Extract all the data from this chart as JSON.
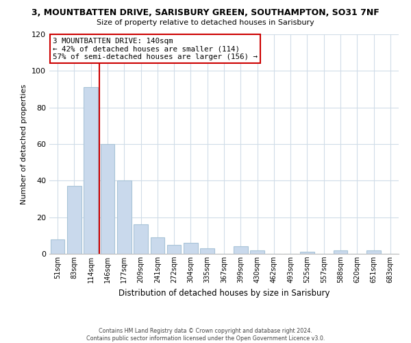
{
  "title": "3, MOUNTBATTEN DRIVE, SARISBURY GREEN, SOUTHAMPTON, SO31 7NF",
  "subtitle": "Size of property relative to detached houses in Sarisbury",
  "xlabel": "Distribution of detached houses by size in Sarisbury",
  "ylabel": "Number of detached properties",
  "bar_labels": [
    "51sqm",
    "83sqm",
    "114sqm",
    "146sqm",
    "177sqm",
    "209sqm",
    "241sqm",
    "272sqm",
    "304sqm",
    "335sqm",
    "367sqm",
    "399sqm",
    "430sqm",
    "462sqm",
    "493sqm",
    "525sqm",
    "557sqm",
    "588sqm",
    "620sqm",
    "651sqm",
    "683sqm"
  ],
  "bar_values": [
    8,
    37,
    91,
    60,
    40,
    16,
    9,
    5,
    6,
    3,
    0,
    4,
    2,
    0,
    0,
    1,
    0,
    2,
    0,
    2,
    0
  ],
  "bar_color": "#c9d9ec",
  "bar_edge_color": "#a8c4d8",
  "vline_x": 2.5,
  "vline_color": "#cc0000",
  "annotation_line1": "3 MOUNTBATTEN DRIVE: 140sqm",
  "annotation_line2": "← 42% of detached houses are smaller (114)",
  "annotation_line3": "57% of semi-detached houses are larger (156) →",
  "annotation_box_color": "#ffffff",
  "annotation_box_edge": "#cc0000",
  "ylim": [
    0,
    120
  ],
  "yticks": [
    0,
    20,
    40,
    60,
    80,
    100,
    120
  ],
  "footer_line1": "Contains HM Land Registry data © Crown copyright and database right 2024.",
  "footer_line2": "Contains public sector information licensed under the Open Government Licence v3.0.",
  "background_color": "#ffffff",
  "grid_color": "#d0dce8"
}
